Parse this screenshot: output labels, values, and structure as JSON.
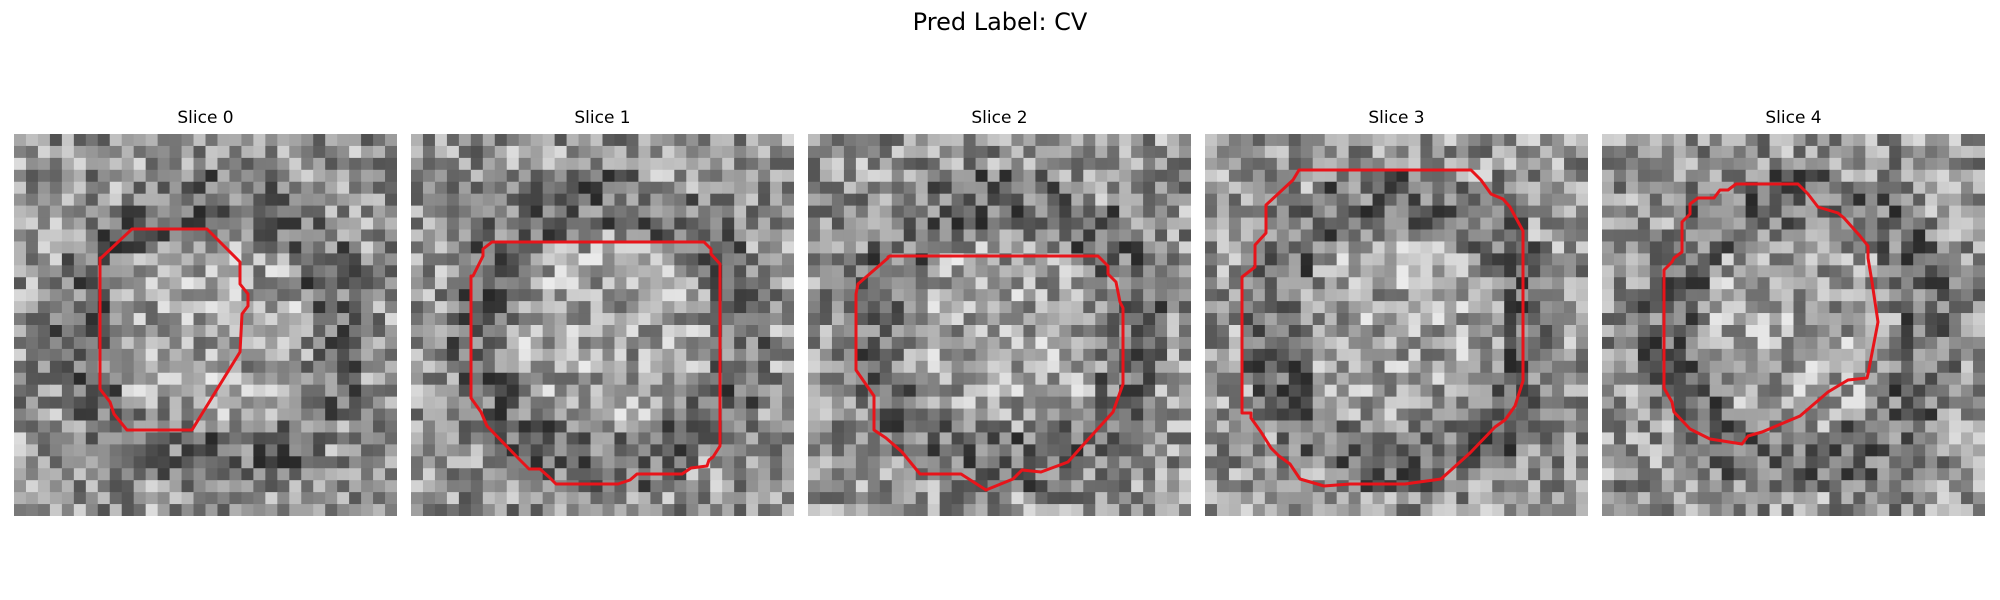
{
  "figure": {
    "title": "Pred Label: CV",
    "contour_color": "#e8141a",
    "panels": [
      {
        "title": "Slice 0"
      },
      {
        "title": "Slice 1"
      },
      {
        "title": "Slice 2"
      },
      {
        "title": "Slice 3"
      },
      {
        "title": "Slice 4"
      }
    ]
  }
}
